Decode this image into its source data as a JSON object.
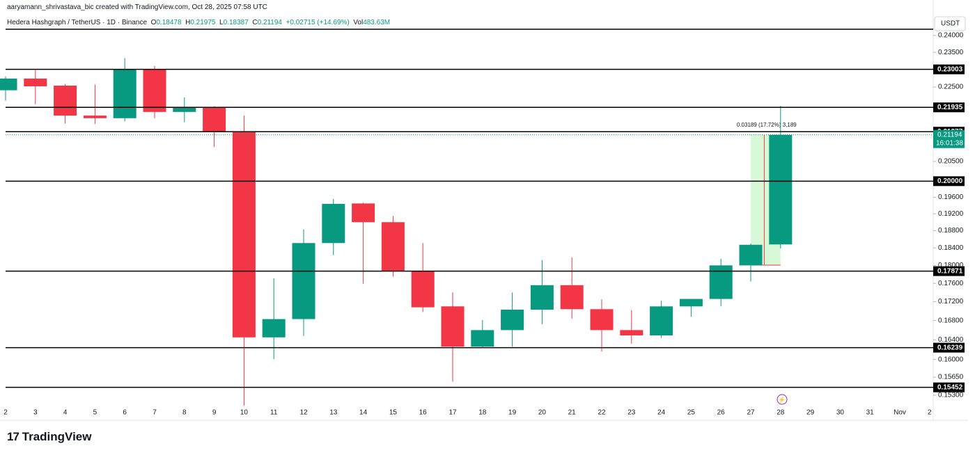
{
  "page": {
    "credit": "aaryamann_shrivastava_bic created with TradingView.com, Oct 28, 2025 07:58 UTC",
    "symbol": "Hedera Hashgraph / TetherUS · 1D · Binance",
    "ohlc_labels": [
      "O",
      "H",
      "L",
      "C"
    ],
    "ohlc_values": [
      "0.18478",
      "0.21975",
      "0.18387",
      "0.21194"
    ],
    "change": "+0.02715 (+14.69%)",
    "volume_label": "Vol",
    "volume": "483.63M",
    "currency": "USDT",
    "logo": "TradingView"
  },
  "chart_data": {
    "type": "candlestick",
    "categories": [
      "2",
      "3",
      "4",
      "5",
      "6",
      "7",
      "8",
      "9",
      "10",
      "11",
      "12",
      "13",
      "14",
      "15",
      "16",
      "17",
      "18",
      "19",
      "20",
      "21",
      "22",
      "23",
      "24",
      "25",
      "26",
      "27",
      "28",
      "29",
      "30",
      "31",
      "Nov",
      "2"
    ],
    "series": [
      {
        "open": [
          0.2241,
          0.2274,
          0.2254,
          0.2171,
          0.2164,
          0.23,
          0.2181,
          0.2194,
          0.2127,
          0.1645,
          0.1683,
          0.1851,
          0.1945,
          0.19,
          0.1787,
          0.171,
          0.1626,
          0.166,
          0.1703,
          0.1756,
          0.1704,
          0.166,
          0.1649,
          0.171,
          0.1726,
          0.18,
          0.18478,
          null,
          null,
          null,
          null,
          null
        ],
        "high": [
          0.228,
          0.23,
          0.2259,
          0.2257,
          0.2333,
          0.231,
          0.2221,
          0.2196,
          0.2171,
          0.1771,
          0.1883,
          0.1956,
          0.1947,
          0.1915,
          0.1851,
          0.174,
          0.1681,
          0.174,
          0.1812,
          0.1818,
          0.1725,
          0.1702,
          0.1722,
          0.1726,
          0.1815,
          0.185,
          0.21975,
          null,
          null,
          null,
          null,
          null
        ],
        "low": [
          0.2212,
          0.2202,
          0.215,
          0.2148,
          0.2155,
          0.2164,
          0.2153,
          0.2087,
          0.151,
          0.1601,
          0.1648,
          0.1823,
          0.1759,
          0.1775,
          0.1698,
          0.1556,
          0.1625,
          0.1626,
          0.1672,
          0.1684,
          0.1616,
          0.1632,
          0.1644,
          0.1688,
          0.171,
          0.1764,
          0.18387,
          null,
          null,
          null,
          null,
          null
        ],
        "close": [
          0.2274,
          0.2252,
          0.2171,
          0.2164,
          0.23,
          0.2181,
          0.2194,
          0.2128,
          0.1645,
          0.1683,
          0.1851,
          0.1944,
          0.19,
          0.1787,
          0.1708,
          0.1626,
          0.166,
          0.1703,
          0.1756,
          0.1704,
          0.166,
          0.1649,
          0.171,
          0.1726,
          0.18,
          0.1847,
          0.21194,
          null,
          null,
          null,
          null,
          null
        ]
      }
    ],
    "up_color": "#089981",
    "down_color": "#f23645",
    "log_scale": true,
    "ylim": [
      0.1488,
      0.2423
    ],
    "yticks": [
      {
        "value": 0.24,
        "label": "0.24000"
      },
      {
        "value": 0.235,
        "label": "0.23500"
      },
      {
        "value": 0.225,
        "label": "0.22500"
      },
      {
        "value": 0.205,
        "label": "0.20500"
      },
      {
        "value": 0.196,
        "label": "0.19600"
      },
      {
        "value": 0.192,
        "label": "0.19200"
      },
      {
        "value": 0.188,
        "label": "0.18800"
      },
      {
        "value": 0.184,
        "label": "0.18400"
      },
      {
        "value": 0.18,
        "label": "0.18000"
      },
      {
        "value": 0.176,
        "label": "0.17600"
      },
      {
        "value": 0.172,
        "label": "0.17200"
      },
      {
        "value": 0.168,
        "label": "0.16800"
      },
      {
        "value": 0.164,
        "label": "0.16400"
      },
      {
        "value": 0.16,
        "label": "0.16000"
      },
      {
        "value": 0.1565,
        "label": "0.15650"
      },
      {
        "value": 0.153,
        "label": "0.15300"
      }
    ],
    "levels": [
      0.23003,
      0.21935,
      0.21277,
      {
        "value": 0.2,
        "label": "0.20000"
      },
      0.17871,
      0.16239,
      0.15452
    ],
    "last_price": 0.21194,
    "countdown": "16:01:38",
    "measure": {
      "from": 0.18005,
      "to": 0.21194,
      "label": "0.03189 (17.72%) 3,189"
    }
  }
}
